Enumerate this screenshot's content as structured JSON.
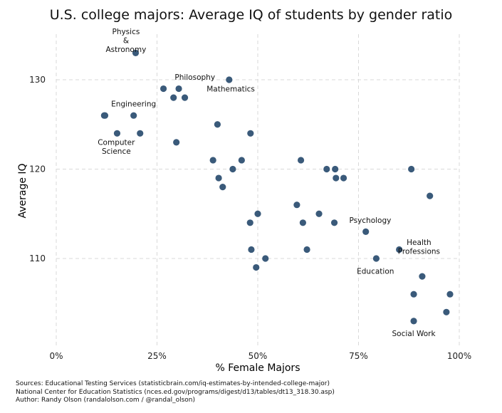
{
  "chart_data": {
    "type": "scatter",
    "title": "U.S. college majors: Average IQ of students by gender ratio",
    "xlabel": "% Female Majors",
    "ylabel": "Average IQ",
    "xlim": [
      0,
      100
    ],
    "ylim": [
      100,
      135
    ],
    "xticks": [
      {
        "value": 0,
        "label": "0%"
      },
      {
        "value": 25,
        "label": "25%"
      },
      {
        "value": 50,
        "label": "50%"
      },
      {
        "value": 75,
        "label": "75%"
      },
      {
        "value": 100,
        "label": "100%"
      }
    ],
    "yticks": [
      {
        "value": 110,
        "label": "110"
      },
      {
        "value": 120,
        "label": "120"
      },
      {
        "value": 130,
        "label": "130"
      }
    ],
    "grid": true,
    "marker_color": "#3a5a7a",
    "points": [
      {
        "x": 19.7,
        "y": 133
      },
      {
        "x": 42.9,
        "y": 130
      },
      {
        "x": 26.6,
        "y": 129
      },
      {
        "x": 30.4,
        "y": 129
      },
      {
        "x": 29.1,
        "y": 128
      },
      {
        "x": 31.9,
        "y": 128
      },
      {
        "x": 11.9,
        "y": 126
      },
      {
        "x": 19.2,
        "y": 126
      },
      {
        "x": 12.1,
        "y": 126
      },
      {
        "x": 15.1,
        "y": 124
      },
      {
        "x": 20.8,
        "y": 124
      },
      {
        "x": 48.2,
        "y": 124
      },
      {
        "x": 40.0,
        "y": 125
      },
      {
        "x": 29.8,
        "y": 123
      },
      {
        "x": 38.9,
        "y": 121
      },
      {
        "x": 46.0,
        "y": 121
      },
      {
        "x": 60.7,
        "y": 121
      },
      {
        "x": 43.8,
        "y": 120
      },
      {
        "x": 67.1,
        "y": 120
      },
      {
        "x": 69.2,
        "y": 120
      },
      {
        "x": 88.1,
        "y": 120
      },
      {
        "x": 40.3,
        "y": 119
      },
      {
        "x": 69.4,
        "y": 119
      },
      {
        "x": 71.3,
        "y": 119
      },
      {
        "x": 41.3,
        "y": 118
      },
      {
        "x": 92.7,
        "y": 117
      },
      {
        "x": 59.7,
        "y": 116
      },
      {
        "x": 50.0,
        "y": 115
      },
      {
        "x": 65.2,
        "y": 115
      },
      {
        "x": 48.1,
        "y": 114
      },
      {
        "x": 61.2,
        "y": 114
      },
      {
        "x": 69.0,
        "y": 114
      },
      {
        "x": 76.8,
        "y": 113
      },
      {
        "x": 48.4,
        "y": 111
      },
      {
        "x": 62.2,
        "y": 111
      },
      {
        "x": 85.1,
        "y": 111
      },
      {
        "x": 51.9,
        "y": 110
      },
      {
        "x": 79.4,
        "y": 110
      },
      {
        "x": 49.6,
        "y": 109
      },
      {
        "x": 90.8,
        "y": 108
      },
      {
        "x": 88.7,
        "y": 106
      },
      {
        "x": 97.7,
        "y": 106
      },
      {
        "x": 96.8,
        "y": 104
      },
      {
        "x": 88.7,
        "y": 103
      }
    ],
    "annotations": [
      {
        "lines": [
          "Physics",
          "&",
          "Astronomy"
        ],
        "x": 17.3,
        "y": 135.1
      },
      {
        "lines": [
          "Philosophy"
        ],
        "x": 34.4,
        "y": 130.0
      },
      {
        "lines": [
          "Mathematics"
        ],
        "x": 43.3,
        "y": 128.7
      },
      {
        "lines": [
          "Engineering"
        ],
        "x": 19.2,
        "y": 127.0
      },
      {
        "lines": [
          "Computer",
          "Science"
        ],
        "x": 14.9,
        "y": 122.7
      },
      {
        "lines": [
          "Psychology"
        ],
        "x": 77.9,
        "y": 114.0
      },
      {
        "lines": [
          "Health",
          "Professions"
        ],
        "x": 90.0,
        "y": 111.5
      },
      {
        "lines": [
          "Education"
        ],
        "x": 79.2,
        "y": 108.3
      },
      {
        "lines": [
          "Social Work"
        ],
        "x": 88.7,
        "y": 101.3
      }
    ]
  },
  "sources": [
    "Sources: Educational Testing Services (statisticbrain.com/iq-estimates-by-intended-college-major)",
    "National Center for Education Statistics (nces.ed.gov/programs/digest/d13/tables/dt13_318.30.asp)",
    "Author: Randy Olson (randalolson.com / @randal_olson)"
  ]
}
